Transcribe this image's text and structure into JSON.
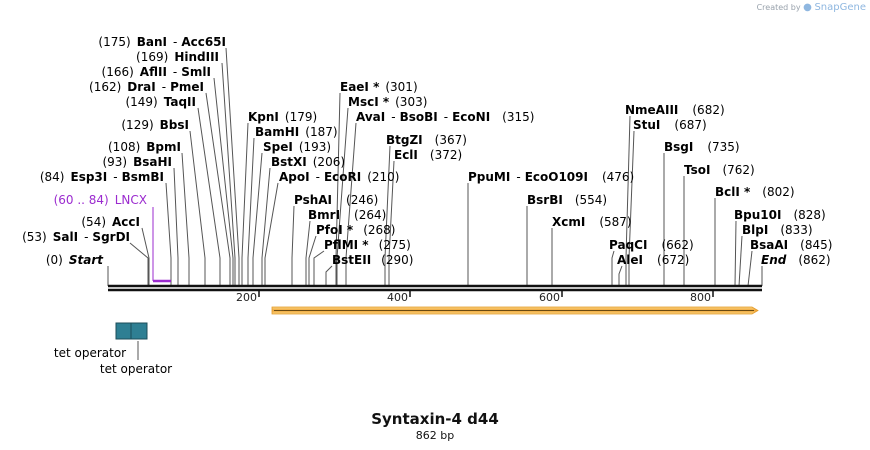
{
  "credit": {
    "prefix": "Created by",
    "brand": "SnapGene"
  },
  "title": "Syntaxin-4 d44",
  "size_label": "862 bp",
  "sequence_length": 862,
  "ruler": {
    "ticks": [
      {
        "value": 200,
        "label": "200"
      },
      {
        "value": 400,
        "label": "400"
      },
      {
        "value": 600,
        "label": "600"
      },
      {
        "value": 800,
        "label": "800"
      }
    ]
  },
  "enzymes": [
    {
      "pos": "(175)",
      "name": "BanI",
      "sep": "-",
      "name2": "Acc65I",
      "site": 175
    },
    {
      "pos": "(169)",
      "name": "HindIII",
      "site": 169
    },
    {
      "pos": "(166)",
      "name": "AflII",
      "sep": "-",
      "name2": "SmlI",
      "site": 166
    },
    {
      "pos": "(162)",
      "name": "DraI",
      "sep": "-",
      "name2": "PmeI",
      "site": 162
    },
    {
      "pos": "(149)",
      "name": "TaqII",
      "site": 149
    },
    {
      "pos": "(129)",
      "name": "BbsI",
      "site": 129
    },
    {
      "pos": "(108)",
      "name": "BpmI",
      "site": 108
    },
    {
      "pos": "(93)",
      "name": "BsaHI",
      "site": 93
    },
    {
      "pos": "(84)",
      "name": "Esp3I",
      "sep": "-",
      "name2": "BsmBI",
      "site": 84
    },
    {
      "pos": "(54)",
      "name": "AccI",
      "site": 54
    },
    {
      "pos": "(53)",
      "name": "SalI",
      "sep": "-",
      "name2": "SgrDI",
      "site": 53
    },
    {
      "pos": "(0)",
      "name": "Start",
      "italic": true,
      "site": 0
    },
    {
      "name": "KpnI",
      "pos": "(179)",
      "site": 179
    },
    {
      "name": "BamHI",
      "pos": "(187)",
      "site": 187
    },
    {
      "name": "SpeI",
      "pos": "(193)",
      "site": 193
    },
    {
      "name": "BstXI",
      "pos": "(206)",
      "site": 206
    },
    {
      "name": "ApoI",
      "sep": "-",
      "name2": "EcoRI",
      "pos": "(210)",
      "site": 210
    },
    {
      "name": "EaeI *",
      "pos": "(301)",
      "site": 301
    },
    {
      "name": "MscI *",
      "pos": "(303)",
      "site": 303
    },
    {
      "name": "AvaI",
      "sep": "-",
      "name2": "BsoBI",
      "sep2": "-",
      "name3": "EcoNI",
      "pos": "(315)",
      "site": 315
    },
    {
      "name": "BtgZI",
      "pos": "(367)",
      "site": 367
    },
    {
      "name": "EclI",
      "pos": "(372)",
      "site": 372
    },
    {
      "name": "PshAI",
      "pos": "(246)",
      "site": 246
    },
    {
      "name": "BmrI",
      "pos": "(264)",
      "site": 264
    },
    {
      "name": "PfoI *",
      "pos": "(268)",
      "site": 268
    },
    {
      "name": "PflMI *",
      "pos": "(275)",
      "site": 275
    },
    {
      "name": "BstEII",
      "pos": "(290)",
      "site": 290
    },
    {
      "name": "PpuMI",
      "sep": "-",
      "name2": "EcoO109I",
      "pos": "(476)",
      "site": 476
    },
    {
      "name": "BsrBI",
      "pos": "(554)",
      "site": 554
    },
    {
      "name": "XcmI",
      "pos": "(587)",
      "site": 587
    },
    {
      "name": "NmeAIII",
      "pos": "(682)",
      "site": 682
    },
    {
      "name": "StuI",
      "pos": "(687)",
      "site": 687
    },
    {
      "name": "PaqCI",
      "pos": "(662)",
      "site": 662
    },
    {
      "name": "AleI",
      "pos": "(672)",
      "site": 672
    },
    {
      "name": "BsgI",
      "pos": "(735)",
      "site": 735
    },
    {
      "name": "TsoI",
      "pos": "(762)",
      "site": 762
    },
    {
      "name": "BclI *",
      "pos": "(802)",
      "site": 802
    },
    {
      "name": "Bpu10I",
      "pos": "(828)",
      "site": 828
    },
    {
      "name": "BlpI",
      "pos": "(833)",
      "site": 833
    },
    {
      "name": "BsaAI",
      "pos": "(845)",
      "site": 845
    },
    {
      "name": "End",
      "italic": true,
      "pos": "(862)",
      "site": 862
    }
  ],
  "features": {
    "lncx": {
      "range": "(60 .. 84)",
      "name": "LNCX",
      "start": 60,
      "end": 84,
      "color": "#9b2bcf"
    },
    "orf": {
      "start": 221,
      "end": 862,
      "color": "#f5b041"
    },
    "tet_operator_1": {
      "label": "tet operator",
      "color": "#2e7f93"
    },
    "tet_operator_2": {
      "label": "tet operator",
      "color": "#2e7f93"
    }
  }
}
